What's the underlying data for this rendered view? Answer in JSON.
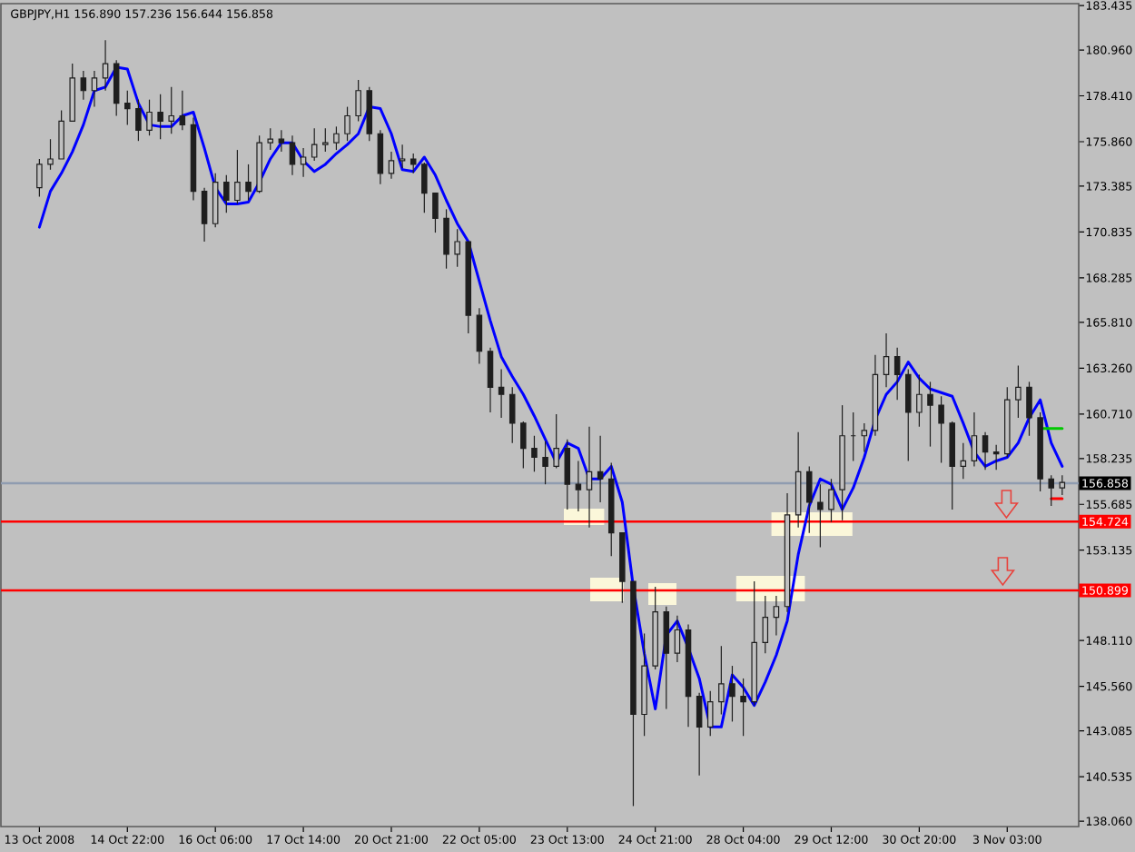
{
  "chart_data": {
    "type": "candlestick",
    "title": "GBPJPY,H1 156.890 157.236 156.644 156.858",
    "color": "#1e1e1e",
    "categories": [
      "13 Oct 2008",
      null,
      null,
      null,
      null,
      null,
      null,
      null,
      "14 Oct 22:00",
      null,
      null,
      null,
      null,
      null,
      null,
      null,
      "16 Oct 06:00",
      null,
      null,
      null,
      null,
      null,
      null,
      null,
      "17 Oct 14:00",
      null,
      null,
      null,
      null,
      null,
      null,
      null,
      "20 Oct 21:00",
      null,
      null,
      null,
      null,
      null,
      null,
      null,
      "22 Oct 05:00",
      null,
      null,
      null,
      null,
      null,
      null,
      null,
      "23 Oct 13:00",
      null,
      null,
      null,
      null,
      null,
      null,
      null,
      "24 Oct 21:00",
      null,
      null,
      null,
      null,
      null,
      null,
      null,
      "28 Oct 04:00",
      null,
      null,
      null,
      null,
      null,
      null,
      null,
      "29 Oct 12:00",
      null,
      null,
      null,
      null,
      null,
      null,
      null,
      "30 Oct 20:00",
      null,
      null,
      null,
      null,
      null,
      null,
      null,
      "3 Nov 03:00",
      null,
      null,
      null,
      null,
      null
    ],
    "ohlc": [
      [
        173.3,
        174.9,
        172.8,
        174.6
      ],
      [
        174.6,
        176.0,
        174.3,
        174.9
      ],
      [
        174.9,
        177.6,
        174.9,
        177.0
      ],
      [
        177.0,
        180.2,
        177.0,
        179.4
      ],
      [
        179.4,
        179.8,
        178.2,
        178.7
      ],
      [
        178.7,
        179.8,
        177.8,
        179.4
      ],
      [
        179.4,
        181.5,
        178.7,
        180.2
      ],
      [
        180.2,
        180.4,
        177.3,
        178.0
      ],
      [
        178.0,
        178.7,
        176.8,
        177.7
      ],
      [
        177.7,
        178.2,
        175.9,
        176.5
      ],
      [
        176.5,
        178.2,
        176.2,
        177.5
      ],
      [
        177.5,
        178.5,
        176.0,
        177.0
      ],
      [
        177.0,
        178.9,
        176.3,
        177.3
      ],
      [
        177.3,
        178.7,
        176.5,
        176.8
      ],
      [
        176.8,
        177.2,
        172.6,
        173.1
      ],
      [
        173.1,
        173.3,
        170.3,
        171.3
      ],
      [
        171.3,
        174.1,
        171.1,
        173.6
      ],
      [
        173.6,
        174.0,
        171.9,
        172.6
      ],
      [
        172.6,
        175.4,
        172.4,
        173.6
      ],
      [
        173.6,
        174.6,
        172.6,
        173.1
      ],
      [
        173.1,
        176.2,
        173.0,
        175.8
      ],
      [
        175.8,
        176.6,
        175.4,
        176.0
      ],
      [
        176.0,
        176.5,
        175.3,
        175.8
      ],
      [
        175.8,
        176.2,
        174.0,
        174.6
      ],
      [
        174.6,
        175.5,
        173.9,
        175.0
      ],
      [
        175.0,
        176.6,
        174.8,
        175.7
      ],
      [
        175.7,
        176.6,
        175.3,
        175.8
      ],
      [
        175.8,
        176.7,
        175.4,
        176.3
      ],
      [
        176.3,
        177.8,
        175.9,
        177.3
      ],
      [
        177.3,
        179.3,
        177.0,
        178.7
      ],
      [
        178.7,
        178.9,
        175.9,
        176.3
      ],
      [
        176.3,
        176.5,
        173.5,
        174.1
      ],
      [
        174.1,
        175.3,
        173.8,
        174.8
      ],
      [
        174.8,
        175.7,
        174.4,
        174.9
      ],
      [
        174.9,
        175.2,
        174.1,
        174.6
      ],
      [
        174.6,
        174.7,
        171.9,
        173.0
      ],
      [
        173.0,
        173.0,
        170.8,
        171.6
      ],
      [
        171.6,
        172.1,
        168.8,
        169.6
      ],
      [
        169.6,
        171.0,
        168.9,
        170.3
      ],
      [
        170.3,
        170.3,
        165.2,
        166.2
      ],
      [
        166.2,
        166.6,
        163.5,
        164.2
      ],
      [
        164.2,
        164.4,
        160.8,
        162.2
      ],
      [
        162.2,
        163.2,
        160.5,
        161.8
      ],
      [
        161.8,
        162.2,
        159.1,
        160.2
      ],
      [
        160.2,
        160.3,
        157.7,
        158.8
      ],
      [
        158.8,
        159.5,
        157.5,
        158.3
      ],
      [
        158.3,
        159.2,
        156.8,
        157.8
      ],
      [
        157.8,
        160.7,
        157.7,
        158.8
      ],
      [
        158.8,
        159.3,
        155.4,
        156.8
      ],
      [
        156.8,
        158.1,
        155.3,
        156.5
      ],
      [
        156.5,
        160.0,
        154.4,
        157.5
      ],
      [
        157.5,
        159.5,
        155.8,
        157.1
      ],
      [
        157.1,
        158.0,
        152.8,
        154.1
      ],
      [
        154.1,
        154.1,
        150.2,
        151.4
      ],
      [
        151.4,
        151.4,
        138.9,
        144.0
      ],
      [
        144.0,
        148.5,
        142.8,
        146.7
      ],
      [
        146.7,
        151.1,
        146.5,
        149.7
      ],
      [
        149.7,
        150.0,
        144.3,
        147.4
      ],
      [
        147.4,
        149.5,
        146.9,
        148.7
      ],
      [
        148.7,
        149.0,
        143.3,
        145.0
      ],
      [
        145.0,
        145.2,
        140.6,
        143.3
      ],
      [
        143.3,
        145.3,
        142.8,
        144.7
      ],
      [
        144.7,
        147.8,
        144.0,
        145.7
      ],
      [
        145.7,
        146.7,
        143.6,
        145.0
      ],
      [
        145.0,
        146.0,
        142.8,
        144.7
      ],
      [
        144.7,
        151.4,
        144.5,
        148.0
      ],
      [
        148.0,
        150.6,
        147.4,
        149.4
      ],
      [
        149.4,
        150.6,
        148.4,
        150.0
      ],
      [
        150.0,
        156.3,
        149.7,
        155.1
      ],
      [
        155.1,
        159.7,
        154.4,
        157.5
      ],
      [
        157.5,
        157.8,
        154.1,
        155.8
      ],
      [
        155.8,
        156.8,
        153.3,
        155.4
      ],
      [
        155.4,
        157.1,
        154.7,
        156.5
      ],
      [
        156.5,
        161.2,
        154.8,
        159.5
      ],
      [
        159.5,
        160.8,
        158.1,
        159.5
      ],
      [
        159.5,
        160.2,
        158.6,
        159.8
      ],
      [
        159.8,
        164.0,
        159.5,
        162.9
      ],
      [
        162.9,
        165.2,
        162.2,
        163.9
      ],
      [
        163.9,
        164.4,
        161.5,
        162.9
      ],
      [
        162.9,
        163.2,
        158.1,
        160.8
      ],
      [
        160.8,
        162.9,
        160.0,
        161.8
      ],
      [
        161.8,
        162.5,
        158.9,
        161.2
      ],
      [
        161.2,
        161.7,
        158.0,
        160.2
      ],
      [
        160.2,
        160.3,
        155.4,
        157.8
      ],
      [
        157.8,
        159.1,
        157.1,
        158.1
      ],
      [
        158.1,
        160.8,
        157.8,
        159.5
      ],
      [
        159.5,
        159.7,
        157.6,
        158.6
      ],
      [
        158.6,
        159.0,
        157.6,
        158.5
      ],
      [
        158.5,
        162.2,
        158.3,
        161.5
      ],
      [
        161.5,
        163.4,
        160.5,
        162.2
      ],
      [
        162.2,
        162.5,
        159.5,
        160.5
      ],
      [
        160.5,
        160.8,
        156.4,
        157.1
      ],
      [
        157.1,
        157.3,
        155.6,
        156.6
      ],
      [
        156.6,
        157.3,
        156.2,
        156.9
      ]
    ],
    "series": [
      {
        "type": "line",
        "color": "#0000ff",
        "values": [
          171.1,
          173.1,
          174.1,
          175.3,
          176.8,
          178.7,
          178.9,
          180.0,
          179.9,
          178.0,
          176.8,
          176.7,
          176.7,
          177.3,
          177.5,
          175.5,
          173.3,
          172.4,
          172.4,
          172.5,
          173.6,
          174.9,
          175.8,
          175.8,
          174.8,
          174.2,
          174.6,
          175.2,
          175.7,
          176.3,
          177.8,
          177.7,
          176.3,
          174.3,
          174.2,
          175.0,
          174.0,
          172.6,
          171.3,
          170.3,
          168.1,
          165.9,
          163.9,
          162.8,
          161.8,
          160.6,
          159.3,
          158.0,
          159.1,
          158.8,
          157.1,
          157.1,
          157.8,
          155.8,
          151.1,
          147.4,
          144.3,
          148.4,
          149.2,
          147.7,
          146.0,
          143.3,
          143.3,
          146.2,
          145.5,
          144.5,
          145.8,
          147.3,
          149.2,
          152.9,
          155.6,
          157.1,
          156.8,
          155.4,
          156.6,
          158.3,
          160.4,
          161.8,
          162.5,
          163.6,
          162.7,
          162.1,
          161.9,
          161.7,
          160.2,
          158.6,
          157.8,
          158.1,
          158.3,
          159.1,
          160.5,
          161.5,
          159.1,
          157.8
        ]
      },
      {
        "type": "line",
        "color": "#00c800",
        "values": [
          null,
          null,
          null,
          null,
          null,
          null,
          null,
          null,
          null,
          null,
          null,
          null,
          null,
          null,
          null,
          null,
          null,
          null,
          null,
          null,
          null,
          null,
          null,
          null,
          null,
          null,
          null,
          null,
          null,
          null,
          null,
          null,
          null,
          null,
          null,
          null,
          null,
          null,
          null,
          null,
          null,
          null,
          null,
          null,
          null,
          null,
          null,
          null,
          null,
          null,
          null,
          null,
          null,
          null,
          null,
          null,
          null,
          null,
          null,
          null,
          null,
          null,
          null,
          null,
          null,
          null,
          null,
          null,
          null,
          null,
          null,
          null,
          null,
          null,
          null,
          null,
          null,
          null,
          null,
          null,
          null,
          null,
          null,
          null,
          null,
          null,
          null,
          null,
          null,
          null,
          null,
          159.9,
          159.9,
          159.9
        ]
      },
      {
        "type": "line",
        "color": "#ff0000",
        "values": [
          null,
          null,
          null,
          null,
          null,
          null,
          null,
          null,
          null,
          null,
          null,
          null,
          null,
          null,
          null,
          null,
          null,
          null,
          null,
          null,
          null,
          null,
          null,
          null,
          null,
          null,
          null,
          null,
          null,
          null,
          null,
          null,
          null,
          null,
          null,
          null,
          null,
          null,
          null,
          null,
          null,
          null,
          null,
          null,
          null,
          null,
          null,
          null,
          null,
          null,
          null,
          null,
          null,
          null,
          null,
          null,
          null,
          null,
          null,
          null,
          null,
          null,
          null,
          null,
          null,
          null,
          null,
          null,
          null,
          null,
          null,
          null,
          null,
          null,
          null,
          null,
          null,
          null,
          null,
          null,
          null,
          null,
          null,
          null,
          null,
          null,
          null,
          null,
          null,
          null,
          null,
          null,
          156.0,
          156.0
        ]
      }
    ],
    "ylim": [
      137.76,
      183.54
    ],
    "yticks": [
      {
        "value": 138.06,
        "label": "138.060"
      },
      140.535,
      143.085,
      {
        "value": 145.56,
        "label": "145.560"
      },
      {
        "value": 148.11,
        "label": "148.110"
      },
      {
        "value": 150.585,
        "label": null
      },
      153.135,
      155.685,
      158.235,
      {
        "value": 160.71,
        "label": "160.710"
      },
      {
        "value": 163.26,
        "label": "163.260"
      },
      {
        "value": 165.81,
        "label": "165.810"
      },
      168.285,
      170.835,
      173.385,
      {
        "value": 175.86,
        "label": "175.860"
      },
      {
        "value": 178.41,
        "label": "178.410"
      },
      {
        "value": 180.96,
        "label": "180.960"
      },
      183.435
    ],
    "ref_lines": [
      {
        "axis": "y",
        "value": 156.858,
        "label": "156.858",
        "color": "#8f9cb0"
      },
      {
        "axis": "y",
        "value": 154.724,
        "label": "154.724",
        "color": "#ff0000"
      },
      {
        "axis": "y",
        "value": 150.899,
        "label": "150.899",
        "color": "#ff0000"
      }
    ]
  }
}
